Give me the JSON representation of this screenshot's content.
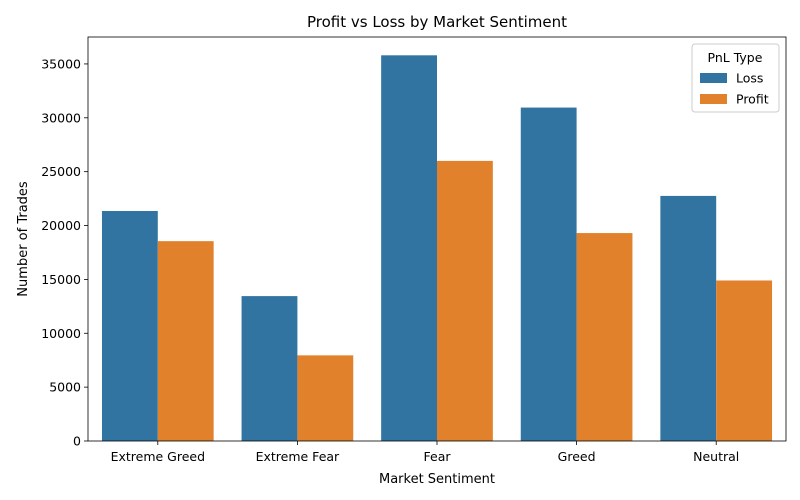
{
  "chart_data": {
    "type": "bar",
    "title": "Profit vs Loss by Market Sentiment",
    "xlabel": "Market Sentiment",
    "ylabel": "Number of Trades",
    "categories": [
      "Extreme Greed",
      "Extreme Fear",
      "Fear",
      "Greed",
      "Neutral"
    ],
    "series": [
      {
        "name": "Loss",
        "color": "#3274a1",
        "values": [
          21350,
          13450,
          35800,
          30950,
          22750
        ]
      },
      {
        "name": "Profit",
        "color": "#e1812c",
        "values": [
          18550,
          7950,
          26000,
          19300,
          14900
        ]
      }
    ],
    "ylim": [
      0,
      37500
    ],
    "yticks": [
      0,
      5000,
      10000,
      15000,
      20000,
      25000,
      30000,
      35000
    ],
    "legend": {
      "title": "PnL Type",
      "position": "top-right"
    },
    "grid": false
  }
}
